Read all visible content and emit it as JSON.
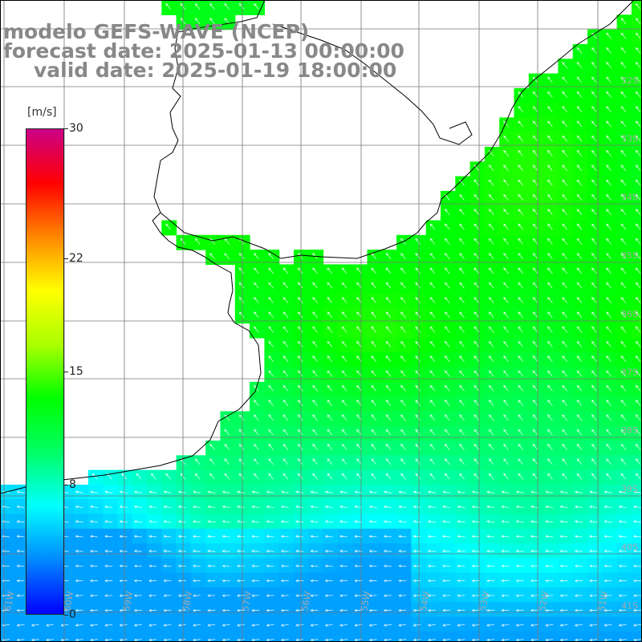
{
  "header": {
    "line1": "modelo GEFS-WAVE (NCEP)",
    "line2": "forecast date: 2025-01-13 00:00:00",
    "line3": "valid date: 2025-01-19 18:00:00"
  },
  "colorbar": {
    "unit": "[m/s]",
    "min": 0,
    "max": 30,
    "ticks": [
      "30",
      "22",
      "15",
      "8",
      "0"
    ],
    "tick_values": [
      30,
      22,
      15,
      8,
      0
    ],
    "colors": [
      "#0000ff",
      "#0088ff",
      "#00ffff",
      "#00ff66",
      "#00ff00",
      "#aaff00",
      "#ffff00",
      "#ff8800",
      "#ff0000",
      "#cc0088"
    ]
  },
  "map": {
    "field": "wind speed with direction arrows",
    "land_color": "#ffffff",
    "coast_color": "#000000",
    "grid_color": "#777777",
    "lat_labels": [
      "32S",
      "33S",
      "34S",
      "35S",
      "36S",
      "37S",
      "38S",
      "39S",
      "40S",
      "41S"
    ],
    "lon_labels": [
      "61W",
      "60W",
      "59W",
      "58W",
      "57W",
      "56W",
      "55W",
      "54W",
      "53W",
      "52W",
      "51W"
    ]
  }
}
